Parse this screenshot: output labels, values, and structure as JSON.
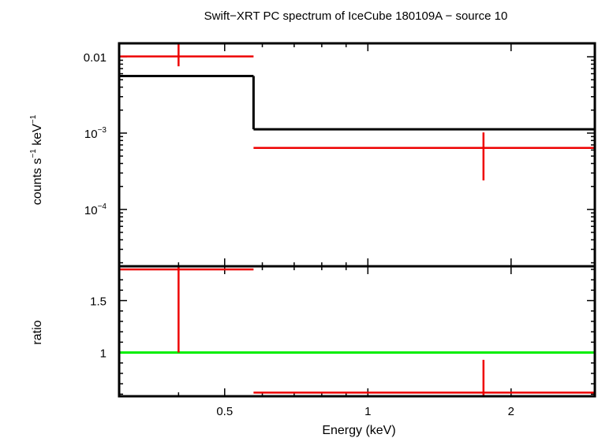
{
  "chart_data": {
    "type": "line",
    "title": "Swift−XRT PC spectrum of IceCube 180109A − source 10",
    "xlabel": "Energy (keV)",
    "xscale": "log",
    "xlim": [
      0.3,
      3.0
    ],
    "xticks": [
      {
        "v": 0.5,
        "label": "0.5"
      },
      {
        "v": 1,
        "label": "1"
      },
      {
        "v": 2,
        "label": "2"
      }
    ],
    "top_panel": {
      "ylabel_parts": {
        "a": "counts s",
        "b": "−1",
        "c": " keV",
        "d": "−1"
      },
      "yscale": "log",
      "ylim": [
        1.8e-05,
        0.015
      ],
      "yticks": [
        {
          "v": 0.01,
          "base": "0.01",
          "exp": ""
        },
        {
          "v": 0.001,
          "base": "10",
          "exp": "−3"
        },
        {
          "v": 0.0001,
          "base": "10",
          "exp": "−4"
        }
      ],
      "data": [
        {
          "xlo": 0.3,
          "xhi": 0.575,
          "x": 0.4,
          "y": 0.0101,
          "ylo": 0.0075,
          "yhi": 0.015
        },
        {
          "xlo": 0.575,
          "xhi": 3.0,
          "x": 1.75,
          "y": 0.00064,
          "ylo": 0.00024,
          "yhi": 0.00102
        }
      ],
      "model": [
        {
          "xlo": 0.3,
          "xhi": 0.575,
          "y": 0.0056
        },
        {
          "xlo": 0.575,
          "xhi": 3.0,
          "y": 0.00112
        }
      ]
    },
    "bottom_panel": {
      "ylabel": "ratio",
      "ylim": [
        0.58,
        1.83
      ],
      "yticks": [
        {
          "v": 1.5,
          "label": "1.5"
        },
        {
          "v": 1,
          "label": "1"
        }
      ],
      "data": [
        {
          "xlo": 0.3,
          "xhi": 0.575,
          "x": 0.4,
          "y": 1.8,
          "ylo": 1.0,
          "yhi": 1.83
        },
        {
          "xlo": 0.575,
          "xhi": 3.0,
          "x": 1.75,
          "y": 0.615,
          "ylo": 0.58,
          "yhi": 0.93
        }
      ],
      "reference": 1
    },
    "colors": {
      "data": "#ee0000",
      "model": "#000000",
      "reference": "#00ee00",
      "axes": "#000000"
    }
  }
}
